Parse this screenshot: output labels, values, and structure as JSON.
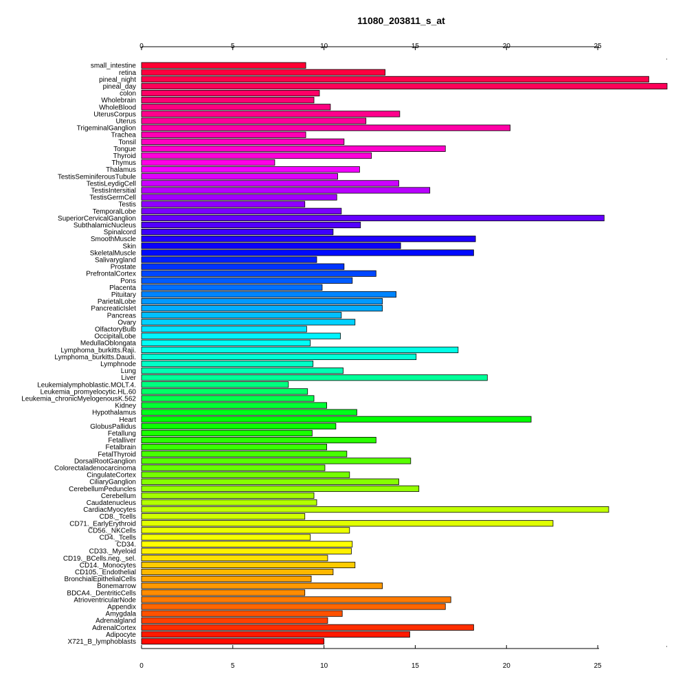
{
  "chart_data": {
    "type": "bar",
    "orientation": "horizontal",
    "title": "11080_203811_s_at",
    "xlabel": "",
    "ylabel": "",
    "xlim": [
      0,
      28.8
    ],
    "x_ticks": [
      "0",
      "5",
      "10",
      "15",
      "20",
      "25"
    ],
    "x_axis_position": "top and bottom",
    "grid": false,
    "legend": "none",
    "bar_border_color": "#000000",
    "categories": [
      "small_intestine",
      "retina",
      "pineal_night",
      "pineal_day",
      "colon",
      "Wholebrain",
      "WholeBlood",
      "UterusCorpus",
      "Uterus",
      "TrigeminalGanglion",
      "Trachea",
      "Tonsil",
      "Tongue",
      "Thyroid",
      "Thymus",
      "Thalamus",
      "TestisSeminiferousTubule",
      "TestisLeydigCell",
      "TestisIntersitial",
      "TestisGermCell",
      "Testis",
      "TemporalLobe",
      "SuperiorCervicalGanglion",
      "SubthalamicNucleus",
      "Spinalcord",
      "SmoothMuscle",
      "Skin",
      "SkeletalMuscle",
      "Salivarygland",
      "Prostate",
      "PrefrontalCortex",
      "Pons",
      "Placenta",
      "Pituitary",
      "ParietalLobe",
      "PancreaticIslet",
      "Pancreas",
      "Ovary",
      "OlfactoryBulb",
      "OccipitalLobe",
      "MedullaOblongata",
      "Lymphoma_burkitts.Raji.",
      "Lymphoma_burkitts.Daudi.",
      "Lymphnode",
      "Lung",
      "Liver",
      "Leukemialymphoblastic.MOLT.4.",
      "Leukemia_promyelocytic.HL.60",
      "Leukemia_chronicMyelogenousK.562",
      "Kidney",
      "Hypothalamus",
      "Heart",
      "GlobusPallidus",
      "Fetallung",
      "Fetalliver",
      "Fetalbrain",
      "FetalThyroid",
      "DorsalRootGanglion",
      "Colorectaladenocarcinoma",
      "CingulateCortex",
      "CiliaryGanglion",
      "CerebellumPeduncles",
      "Cerebellum",
      "Caudatenucleus",
      "CardiacMyocytes",
      "CD8._Tcells",
      "CD71._EarlyErythroid",
      "CD56._NKCells",
      "CD4._Tcells",
      "CD34.",
      "CD33._Myeloid",
      "CD19._BCells.neg._sel.",
      "CD14._Monocytes",
      "CD105._Endothelial",
      "BronchialEpithelialCells",
      "Bonemarrow",
      "BDCA4._DentriticCells",
      "AtrioventricularNode",
      "Appendix",
      "Amygdala",
      "Adrenalgland",
      "AdrenalCortex",
      "Adipocyte",
      "X721_B_lymphoblasts"
    ],
    "values": [
      9.0,
      13.35,
      27.8,
      28.8,
      9.75,
      9.45,
      10.35,
      14.15,
      12.3,
      20.2,
      9.0,
      11.1,
      16.65,
      12.6,
      7.3,
      11.95,
      10.75,
      14.1,
      15.8,
      10.7,
      8.95,
      10.95,
      25.35,
      12.0,
      10.5,
      18.3,
      14.2,
      18.2,
      9.6,
      11.1,
      12.85,
      11.55,
      9.9,
      13.95,
      13.2,
      13.2,
      10.95,
      11.7,
      9.05,
      10.9,
      9.25,
      17.35,
      15.05,
      9.4,
      11.05,
      18.95,
      8.05,
      9.1,
      9.45,
      10.15,
      11.8,
      21.35,
      10.65,
      9.35,
      12.85,
      10.15,
      11.25,
      14.75,
      10.05,
      11.4,
      14.1,
      15.2,
      9.45,
      9.6,
      25.6,
      8.95,
      22.55,
      11.4,
      9.25,
      11.55,
      11.5,
      10.2,
      11.7,
      10.5,
      9.3,
      13.2,
      8.95,
      16.95,
      16.65,
      11.0,
      10.2,
      18.2,
      14.7,
      10.0
    ],
    "colors": [
      "#FF0033",
      "#FF0040",
      "#FF004C",
      "#FF0059",
      "#FF0066",
      "#FF0073",
      "#FF0080",
      "#FF008C",
      "#FF0099",
      "#FF00A6",
      "#FF00B3",
      "#FF00BF",
      "#FF00CC",
      "#FF00D9",
      "#FF00E6",
      "#F200FF",
      "#E000FF",
      "#CC00FF",
      "#B800FF",
      "#A300FF",
      "#8F00FF",
      "#7A00FF",
      "#6600FF",
      "#5200FF",
      "#3D00FF",
      "#1F00FF",
      "#0A00FF",
      "#000AFF",
      "#0020FF",
      "#0033FF",
      "#0047FF",
      "#005CFF",
      "#0070FF",
      "#0085FF",
      "#0099FF",
      "#00ADFF",
      "#00BFFF",
      "#00D1FF",
      "#00E3FF",
      "#00F5FF",
      "#00FFF5",
      "#00FFE6",
      "#00FFD6",
      "#00FFC7",
      "#00FFB3",
      "#00FF99",
      "#00FF80",
      "#00FF66",
      "#00FF4D",
      "#00FF33",
      "#00FF1A",
      "#00FF00",
      "#0DFF00",
      "#1AFF00",
      "#29FF00",
      "#38FF00",
      "#47FF00",
      "#57FF00",
      "#66FF00",
      "#75FF00",
      "#85FF00",
      "#94FF00",
      "#A3FF00",
      "#B3FF00",
      "#C2FF00",
      "#D1FF00",
      "#E0FF00",
      "#EBFF00",
      "#F5FF00",
      "#FFFF00",
      "#FFF000",
      "#FFE000",
      "#FFCC00",
      "#FFB800",
      "#FFA300",
      "#FF9900",
      "#FF8C00",
      "#FF7A00",
      "#FF6600",
      "#FF5200",
      "#FF4000",
      "#FF2E00",
      "#FF1A00",
      "#FF0A00"
    ]
  }
}
